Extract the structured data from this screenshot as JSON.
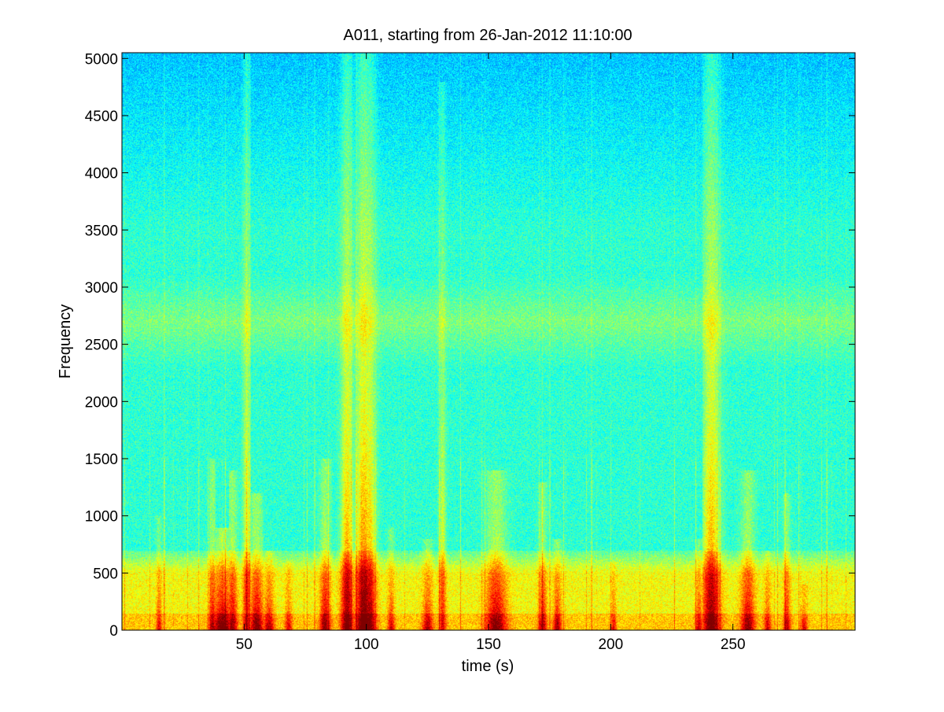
{
  "chart_data": {
    "type": "heatmap",
    "subtype": "spectrogram",
    "title": "A011, starting from 26-Jan-2012 11:10:00",
    "xlabel": "time (s)",
    "ylabel": "Frequency",
    "xlim": [
      0,
      300
    ],
    "ylim": [
      0,
      5050
    ],
    "xticks": [
      50,
      100,
      150,
      200,
      250
    ],
    "yticks": [
      0,
      500,
      1000,
      1500,
      2000,
      2500,
      3000,
      3500,
      4000,
      4500,
      5000
    ],
    "colormap": "jet",
    "grid": false,
    "background_level": 0.42,
    "low_frequency_band": {
      "top_hz": 700,
      "level": 0.62
    },
    "mid_band": {
      "from_hz": 2300,
      "to_hz": 3100,
      "level": 0.5
    },
    "events": [
      {
        "t": 15,
        "width_s": 0.8,
        "peak_hz": 1000,
        "intensity": 0.55
      },
      {
        "t": 37,
        "width_s": 1.2,
        "peak_hz": 1500,
        "intensity": 0.7
      },
      {
        "t": 41,
        "width_s": 3,
        "peak_hz": 900,
        "intensity": 0.95
      },
      {
        "t": 45,
        "width_s": 1.5,
        "peak_hz": 1400,
        "intensity": 0.8
      },
      {
        "t": 51,
        "width_s": 1.2,
        "peak_hz": 5050,
        "intensity": 0.65
      },
      {
        "t": 55,
        "width_s": 2,
        "peak_hz": 1200,
        "intensity": 0.85
      },
      {
        "t": 60,
        "width_s": 1.5,
        "peak_hz": 700,
        "intensity": 0.75
      },
      {
        "t": 68,
        "width_s": 1,
        "peak_hz": 600,
        "intensity": 0.6
      },
      {
        "t": 83,
        "width_s": 1.5,
        "peak_hz": 1500,
        "intensity": 0.8
      },
      {
        "t": 92,
        "width_s": 1.8,
        "peak_hz": 5050,
        "intensity": 0.9
      },
      {
        "t": 99,
        "width_s": 2.5,
        "peak_hz": 5050,
        "intensity": 1.0
      },
      {
        "t": 101,
        "width_s": 2,
        "peak_hz": 5050,
        "intensity": 0.85
      },
      {
        "t": 110,
        "width_s": 1,
        "peak_hz": 900,
        "intensity": 0.6
      },
      {
        "t": 125,
        "width_s": 1.5,
        "peak_hz": 800,
        "intensity": 0.7
      },
      {
        "t": 131,
        "width_s": 1,
        "peak_hz": 4800,
        "intensity": 0.55
      },
      {
        "t": 153,
        "width_s": 3,
        "peak_hz": 1400,
        "intensity": 0.85
      },
      {
        "t": 172,
        "width_s": 1.2,
        "peak_hz": 1300,
        "intensity": 0.7
      },
      {
        "t": 178,
        "width_s": 1.2,
        "peak_hz": 800,
        "intensity": 0.75
      },
      {
        "t": 201,
        "width_s": 0.8,
        "peak_hz": 600,
        "intensity": 0.55
      },
      {
        "t": 236,
        "width_s": 1,
        "peak_hz": 800,
        "intensity": 0.65
      },
      {
        "t": 241,
        "width_s": 2.5,
        "peak_hz": 5050,
        "intensity": 0.9
      },
      {
        "t": 256,
        "width_s": 2,
        "peak_hz": 1400,
        "intensity": 0.8
      },
      {
        "t": 264,
        "width_s": 1,
        "peak_hz": 700,
        "intensity": 0.6
      },
      {
        "t": 272,
        "width_s": 1,
        "peak_hz": 1200,
        "intensity": 0.65
      },
      {
        "t": 279,
        "width_s": 1,
        "peak_hz": 400,
        "intensity": 0.6
      }
    ]
  }
}
